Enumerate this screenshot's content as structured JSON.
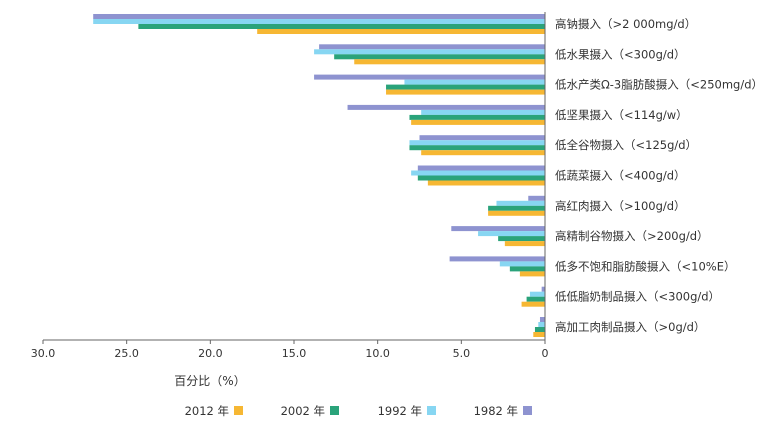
{
  "chart_data": {
    "type": "bar",
    "orientation": "horizontal",
    "x_axis_direction": "reversed",
    "xlabel": "百分比（%）",
    "xlim": [
      0,
      30
    ],
    "xticks": [
      "0",
      "5.0",
      "10.0",
      "15.0",
      "20.0",
      "25.0",
      "30.0"
    ],
    "grid": false,
    "legend_position": "bottom",
    "categories": [
      "高钠摄入（>2 000mg/d）",
      "低水果摄入（<300g/d）",
      "低水产类Ω-3脂肪酸摄入（<250mg/d）",
      "低坚果摄入（<114g/w）",
      "低全谷物摄入（<125g/d）",
      "低蔬菜摄入（<400g/d）",
      "高红肉摄入（>100g/d）",
      "高精制谷物摄入（>200g/d）",
      "低多不饱和脂肪酸摄入（<10%E）",
      "低低脂奶制品摄入（<300g/d）",
      "高加工肉制品摄入（>0g/d）"
    ],
    "series": [
      {
        "name": "1982 年",
        "color": "#8e93d0",
        "values": [
          27,
          13.5,
          13.8,
          11.8,
          7.5,
          7.6,
          1.0,
          5.6,
          5.7,
          0.2,
          0.3
        ]
      },
      {
        "name": "1992 年",
        "color": "#87d6f2",
        "values": [
          27,
          13.8,
          8.4,
          7.4,
          8.1,
          8.0,
          2.9,
          4.0,
          2.7,
          0.9,
          0.4
        ]
      },
      {
        "name": "2002 年",
        "color": "#2aa37a",
        "values": [
          24.3,
          12.6,
          9.5,
          8.1,
          8.1,
          7.6,
          3.4,
          2.8,
          2.1,
          1.1,
          0.6
        ]
      },
      {
        "name": "2012 年",
        "color": "#f6b733",
        "values": [
          17.2,
          11.4,
          9.5,
          8.0,
          7.4,
          7.0,
          3.4,
          2.4,
          1.5,
          1.4,
          0.7
        ]
      }
    ]
  }
}
